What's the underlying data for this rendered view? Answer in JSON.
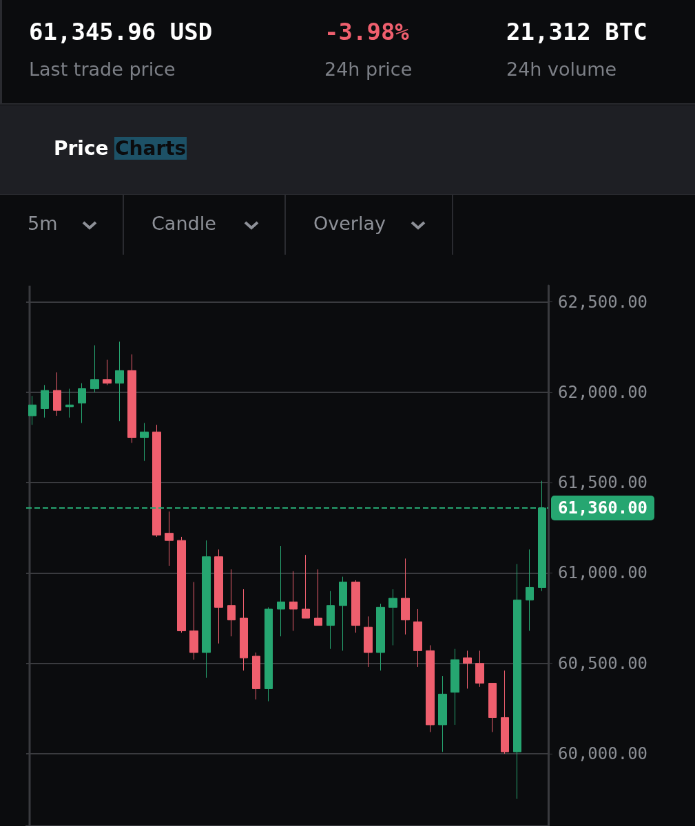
{
  "chart_data": {
    "type": "candlestick",
    "annotations": [
      "61,345.96 USD",
      "Last trade price",
      "-3.98%",
      "24h price",
      "21,312 BTC",
      "24h volume",
      "Price",
      "Charts",
      "5m",
      "Candle",
      "Overlay"
    ],
    "categories": [
      null,
      null,
      null,
      null,
      null,
      null,
      null,
      null,
      null,
      null,
      null,
      null,
      null,
      null,
      null,
      null,
      null,
      null,
      null,
      null,
      null,
      null,
      null,
      null,
      null,
      null,
      null,
      null,
      null,
      null,
      null,
      null,
      null,
      null,
      null,
      null,
      null,
      null,
      null,
      null,
      null,
      null
    ],
    "ohlc": [
      [
        61870,
        61980,
        61820,
        61930
      ],
      [
        61910,
        62040,
        61860,
        62010
      ],
      [
        62010,
        62110,
        61870,
        61900
      ],
      [
        61920,
        62020,
        61860,
        61930
      ],
      [
        61940,
        62050,
        61830,
        62020
      ],
      [
        62020,
        62260,
        62000,
        62070
      ],
      [
        62070,
        62180,
        62040,
        62050
      ],
      [
        62050,
        62280,
        61840,
        62120
      ],
      [
        62120,
        62210,
        61720,
        61750
      ],
      [
        61750,
        61830,
        61620,
        61780
      ],
      [
        61780,
        61820,
        61200,
        61210
      ],
      [
        61220,
        61340,
        61040,
        61180
      ],
      [
        61180,
        61200,
        60670,
        60680
      ],
      [
        60680,
        60950,
        60520,
        60560
      ],
      [
        60560,
        61180,
        60420,
        61090
      ],
      [
        61090,
        61130,
        60610,
        60810
      ],
      [
        60820,
        61020,
        60650,
        60740
      ],
      [
        60750,
        60910,
        60460,
        60530
      ],
      [
        60540,
        60560,
        60300,
        60360
      ],
      [
        60360,
        60810,
        60290,
        60800
      ],
      [
        60800,
        61150,
        60650,
        60840
      ],
      [
        60840,
        61010,
        60680,
        60800
      ],
      [
        60800,
        61100,
        60750,
        60750
      ],
      [
        60750,
        61020,
        60710,
        60710
      ],
      [
        60710,
        60900,
        60580,
        60820
      ],
      [
        60820,
        60980,
        60570,
        60950
      ],
      [
        60950,
        60960,
        60670,
        60710
      ],
      [
        60700,
        60760,
        60480,
        60560
      ],
      [
        60560,
        60830,
        60460,
        60810
      ],
      [
        60810,
        60910,
        60600,
        60860
      ],
      [
        60860,
        61080,
        60660,
        60740
      ],
      [
        60730,
        60800,
        60480,
        60570
      ],
      [
        60570,
        60600,
        60120,
        60160
      ],
      [
        60160,
        60430,
        60010,
        60330
      ],
      [
        60340,
        60580,
        60160,
        60520
      ],
      [
        60530,
        60570,
        60360,
        60500
      ],
      [
        60500,
        60570,
        60370,
        60390
      ],
      [
        60390,
        60390,
        60120,
        60200
      ],
      [
        60200,
        60460,
        60000,
        60010
      ],
      [
        60010,
        61050,
        59750,
        60850
      ],
      [
        60850,
        61130,
        60680,
        60920
      ],
      [
        60920,
        61510,
        60900,
        61360
      ]
    ],
    "colors": [
      "#26a671",
      "#26a671",
      "#ef5f6e",
      "#26a671",
      "#26a671",
      "#26a671",
      "#ef5f6e",
      "#26a671",
      "#ef5f6e",
      "#26a671",
      "#ef5f6e",
      "#ef5f6e",
      "#ef5f6e",
      "#ef5f6e",
      "#26a671",
      "#ef5f6e",
      "#ef5f6e",
      "#ef5f6e",
      "#ef5f6e",
      "#26a671",
      "#26a671",
      "#ef5f6e",
      "#ef5f6e",
      "#ef5f6e",
      "#26a671",
      "#26a671",
      "#ef5f6e",
      "#ef5f6e",
      "#26a671",
      "#26a671",
      "#ef5f6e",
      "#ef5f6e",
      "#ef5f6e",
      "#26a671",
      "#26a671",
      "#ef5f6e",
      "#ef5f6e",
      "#ef5f6e",
      "#ef5f6e",
      "#26a671",
      "#26a671",
      "#26a671"
    ],
    "ylim": [
      59600,
      62590
    ],
    "yticks": [
      {
        "value": 60000,
        "label": "60,000.00"
      },
      {
        "value": 60500,
        "label": "60,500.00"
      },
      {
        "value": 61000,
        "label": "61,000.00"
      },
      {
        "value": 61500,
        "label": "61,500.00"
      },
      {
        "value": 62000,
        "label": "62,000.00"
      },
      {
        "value": 62500,
        "label": "62,500.00"
      }
    ],
    "ref_lines": [
      {
        "axis": "y",
        "value": 61360,
        "label": "61,360.00",
        "color": "#26a671",
        "line_style": "dashed"
      }
    ],
    "grid": "y",
    "tick_labels": "y"
  }
}
